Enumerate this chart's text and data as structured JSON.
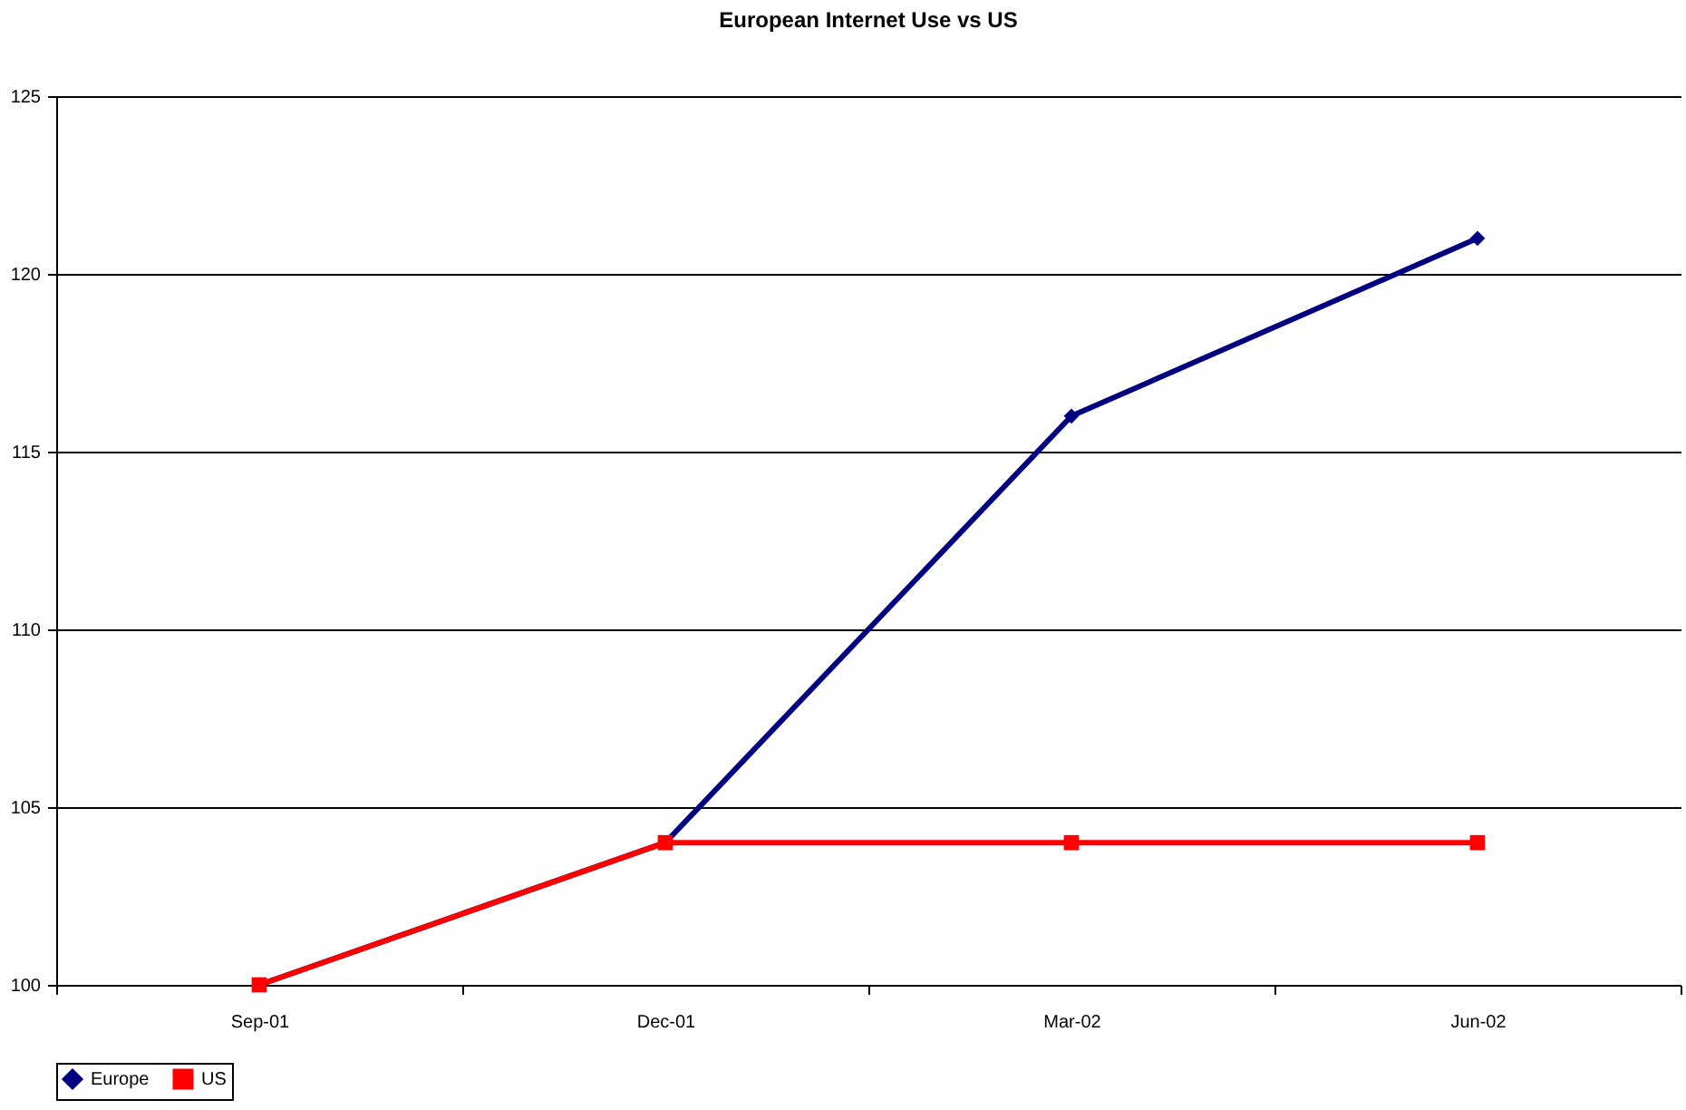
{
  "chart_data": {
    "type": "line",
    "title": "European Internet Use vs US",
    "categories": [
      "Sep-01",
      "Dec-01",
      "Mar-02",
      "Jun-02"
    ],
    "series": [
      {
        "name": "Europe",
        "color": "#000080",
        "values": [
          100,
          104,
          116,
          121
        ],
        "marker": "diamond"
      },
      {
        "name": "US",
        "color": "#ff0000",
        "values": [
          100,
          104,
          104,
          104
        ],
        "marker": "square"
      }
    ],
    "ylim": [
      100,
      125
    ],
    "yticks": [
      100,
      105,
      110,
      115,
      120,
      125
    ],
    "grid": "y",
    "legend": "bottom",
    "line_style": "solid"
  }
}
